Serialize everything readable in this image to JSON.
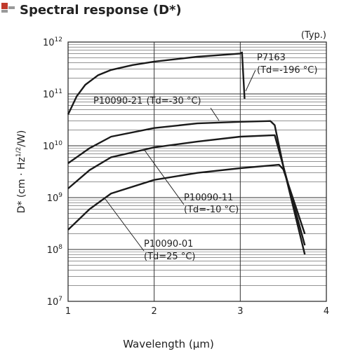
{
  "chart_data": {
    "type": "line",
    "title": "Spectral response (D*)",
    "note": "(Typ.)",
    "x_label": "Wavelength (μm)",
    "y_label": {
      "text": "D* (cm · Hz",
      "sup": "1/2",
      "tail": "/W)"
    },
    "xlim": [
      1,
      4
    ],
    "xticks": [
      1,
      2,
      3,
      4
    ],
    "ylim": [
      10000000,
      1000000000000
    ],
    "log_y": true,
    "grid": true,
    "yticks": [
      {
        "value": 10000000,
        "label": "10",
        "exp": "7"
      },
      {
        "value": 100000000,
        "label": "10",
        "exp": "8"
      },
      {
        "value": 1000000000,
        "label": "10",
        "exp": "9"
      },
      {
        "value": 10000000000,
        "label": "10",
        "exp": "10"
      },
      {
        "value": 100000000000,
        "label": "10",
        "exp": "11"
      },
      {
        "value": 1000000000000,
        "label": "10",
        "exp": "12"
      }
    ],
    "series": [
      {
        "name": "P7163",
        "condition": "(Td=-196 °C)",
        "color": "#1a1a1a",
        "x": [
          1,
          1.1,
          1.2,
          1.35,
          1.5,
          1.75,
          2,
          2.5,
          3,
          3.02,
          3.05
        ],
        "values": [
          40000000000,
          90000000000,
          150000000000,
          230000000000,
          290000000000,
          360000000000,
          420000000000,
          520000000000,
          600000000000,
          630000000000,
          80000000000
        ]
      },
      {
        "name": "P10090-21",
        "condition": "(Td=-30 °C)",
        "color": "#1a1a1a",
        "x": [
          1,
          1.25,
          1.5,
          2,
          2.5,
          3,
          3.35,
          3.4,
          3.5,
          3.75
        ],
        "values": [
          4600000000,
          9000000000,
          15000000000,
          22000000000,
          27000000000,
          29000000000,
          30000000000,
          25000000000,
          4000000000,
          120000000
        ]
      },
      {
        "name": "P10090-11",
        "condition": "(Td=-10 °C)",
        "color": "#1a1a1a",
        "x": [
          1,
          1.25,
          1.5,
          2,
          2.5,
          3,
          3.4,
          3.5,
          3.75
        ],
        "values": [
          1500000000,
          3400000000,
          6000000000,
          9300000000,
          12000000000,
          15000000000,
          16000000000,
          4000000000,
          80000000
        ]
      },
      {
        "name": "P10090-01",
        "condition": "(Td=25 °C)",
        "color": "#1a1a1a",
        "x": [
          1,
          1.25,
          1.5,
          2,
          2.5,
          3,
          3.45,
          3.5,
          3.75
        ],
        "values": [
          240000000,
          600000000,
          1200000000,
          2200000000,
          3000000000,
          3700000000,
          4300000000,
          3500000000,
          200000000
        ]
      }
    ]
  }
}
